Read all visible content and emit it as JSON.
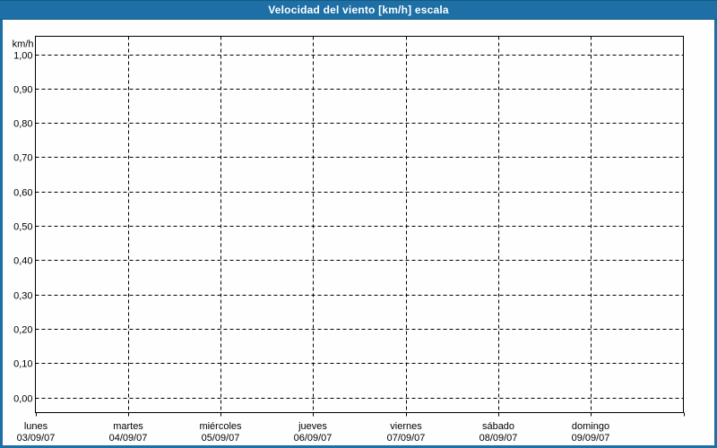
{
  "title_bar": {
    "title": "Velocidad del viento [km/h] escala"
  },
  "colors": {
    "frame_blue": "#1d6fa5",
    "frame_edge_dark": "#155a82",
    "plot_background": "#fdfefd",
    "grid_and_text": "#000000"
  },
  "chart_data": {
    "type": "line",
    "title": "Velocidad del viento [km/h] escala",
    "ylabel": "km/h",
    "xlabel": "",
    "ylim": [
      0.0,
      1.0
    ],
    "ytick_step": 0.1,
    "ytick_labels": [
      "0,00",
      "0,10",
      "0,20",
      "0,30",
      "0,40",
      "0,50",
      "0,60",
      "0,70",
      "0,80",
      "0,90",
      "1,00"
    ],
    "grid": "dashed-horizontal-and-vertical",
    "legend": "none",
    "x_categories": [
      {
        "day": "lunes",
        "date": "03/09/07"
      },
      {
        "day": "martes",
        "date": "04/09/07"
      },
      {
        "day": "miércoles",
        "date": "05/09/07"
      },
      {
        "day": "jueves",
        "date": "06/09/07"
      },
      {
        "day": "viernes",
        "date": "07/09/07"
      },
      {
        "day": "sábado",
        "date": "08/09/07"
      },
      {
        "day": "domingo",
        "date": "09/09/07"
      }
    ],
    "series": [],
    "note_visible_content": "plot area is empty; no wind-speed data points are drawn"
  }
}
